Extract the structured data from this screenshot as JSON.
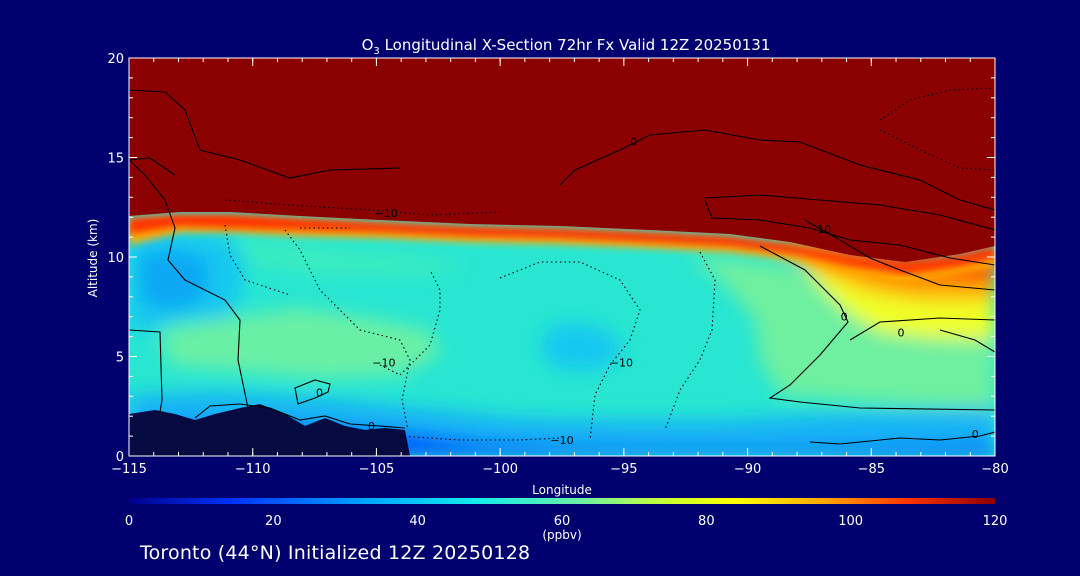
{
  "chart_data": {
    "type": "heatmap",
    "title_parts": [
      "O",
      "3",
      " Longitudinal X-Section 72hr  Fx Valid 12Z 20250131"
    ],
    "xlabel": "Longitude",
    "ylabel": "Altitude (km)",
    "xlim": [
      -115,
      -80
    ],
    "ylim": [
      0,
      20
    ],
    "x_ticks": [
      -115,
      -110,
      -105,
      -100,
      -95,
      -90,
      -85,
      -80
    ],
    "x_tick_labels": [
      "−115",
      "−110",
      "−105",
      "−100",
      "−95",
      "−90",
      "−85",
      "−80"
    ],
    "y_ticks": [
      0,
      5,
      10,
      15,
      20
    ],
    "y_tick_labels": [
      "0",
      "5",
      "10",
      "15",
      "20"
    ],
    "colorbar": {
      "label": "(ppbv)",
      "range": [
        0,
        120
      ],
      "ticks": [
        0,
        20,
        40,
        60,
        80,
        100,
        120
      ],
      "tick_labels": [
        "0",
        "20",
        "40",
        "60",
        "80",
        "100",
        "120"
      ]
    },
    "contour_labels": [
      {
        "text": "−10",
        "lon": -104.6,
        "alt": 12.0
      },
      {
        "text": "0",
        "lon": -94.6,
        "alt": 15.6
      },
      {
        "text": "10",
        "lon": -86.9,
        "alt": 11.2
      },
      {
        "text": "0",
        "lon": -86.1,
        "alt": 6.8
      },
      {
        "text": "0",
        "lon": -83.8,
        "alt": 6.0
      },
      {
        "text": "−10",
        "lon": -104.7,
        "alt": 4.5
      },
      {
        "text": "−10",
        "lon": -95.1,
        "alt": 4.5
      },
      {
        "text": "0",
        "lon": -107.3,
        "alt": 3.0
      },
      {
        "text": "0",
        "lon": -105.2,
        "alt": 1.3
      },
      {
        "text": "−10",
        "lon": -97.5,
        "alt": 0.6
      },
      {
        "text": "0",
        "lon": -80.8,
        "alt": 0.9
      }
    ]
  },
  "footer": {
    "text": "Toronto (44°N) Initialized 12Z 20250128"
  }
}
